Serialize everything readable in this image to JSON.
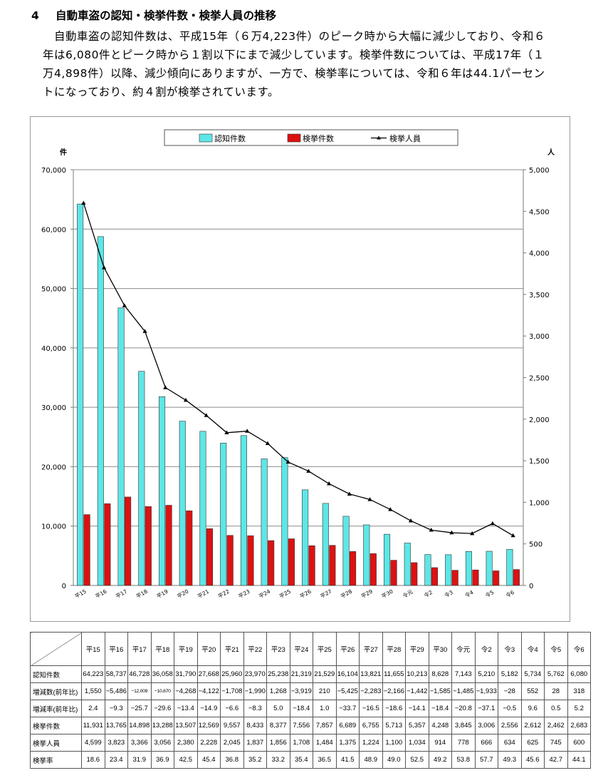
{
  "section": {
    "number": "4",
    "title": "自動車盗の認知・検挙件数・検挙人員の推移",
    "paragraph": "自動車盗の認知件数は、平成15年（６万4,223件）のピーク時から大幅に減少しており、令和６年は6,080件とピーク時から１割以下にまで減少しています。検挙件数については、平成17年（１万4,898件）以降、減少傾向にありますが、一方で、検挙率については、令和６年は44.1パーセントになっており、約４割が検挙されています。"
  },
  "chart_data": {
    "type": "bar",
    "categories": [
      "平15",
      "平16",
      "平17",
      "平18",
      "平19",
      "平20",
      "平21",
      "平22",
      "平23",
      "平24",
      "平25",
      "平26",
      "平27",
      "平28",
      "平29",
      "平30",
      "令元",
      "令2",
      "令3",
      "令4",
      "令5",
      "令6"
    ],
    "series": [
      {
        "name": "認知件数",
        "kind": "bar",
        "axis": "left",
        "color": "#5ee6e6",
        "values": [
          64223,
          58737,
          46728,
          36058,
          31790,
          27668,
          25960,
          23970,
          25238,
          21319,
          21529,
          16104,
          13821,
          11655,
          10213,
          8628,
          7143,
          5210,
          5182,
          5734,
          5762,
          6080
        ]
      },
      {
        "name": "検挙件数",
        "kind": "bar",
        "axis": "left",
        "color": "#dd1111",
        "values": [
          11931,
          13765,
          14898,
          13288,
          13507,
          12569,
          9557,
          8433,
          8377,
          7556,
          7857,
          6689,
          6755,
          5713,
          5357,
          4248,
          3845,
          3006,
          2556,
          2612,
          2462,
          2683
        ]
      },
      {
        "name": "検挙人員",
        "kind": "line",
        "axis": "right",
        "color": "#000000",
        "values": [
          4599,
          3823,
          3366,
          3056,
          2380,
          2228,
          2045,
          1837,
          1856,
          1708,
          1484,
          1375,
          1224,
          1100,
          1034,
          914,
          778,
          666,
          634,
          625,
          745,
          600
        ]
      }
    ],
    "y_left": {
      "unit": "件",
      "lim": [
        0,
        70000
      ],
      "ticks": [
        "0",
        "10,000",
        "20,000",
        "30,000",
        "40,000",
        "50,000",
        "60,000",
        "70,000"
      ]
    },
    "y_right": {
      "unit": "人",
      "lim": [
        0,
        5000
      ],
      "ticks": [
        "0",
        "500",
        "1,000",
        "1,500",
        "2,000",
        "2,500",
        "3,000",
        "3,500",
        "4,000",
        "4,500",
        "5,000"
      ]
    },
    "grid": true,
    "legend_position": "top"
  },
  "table": {
    "header": [
      "平15",
      "平16",
      "平17",
      "平18",
      "平19",
      "平20",
      "平21",
      "平22",
      "平23",
      "平24",
      "平25",
      "平26",
      "平27",
      "平28",
      "平29",
      "平30",
      "令元",
      "令2",
      "令3",
      "令4",
      "令5",
      "令6"
    ],
    "rows": [
      {
        "label": "認知件数",
        "cells": [
          "64,223",
          "58,737",
          "46,728",
          "36,058",
          "31,790",
          "27,668",
          "25,960",
          "23,970",
          "25,238",
          "21,319",
          "21,529",
          "16,104",
          "13,821",
          "11,655",
          "10,213",
          "8,628",
          "7,143",
          "5,210",
          "5,182",
          "5,734",
          "5,762",
          "6,080"
        ]
      },
      {
        "label": "増減数(前年比)",
        "cells": [
          "1,550",
          "−5,486",
          "−12,009",
          "−10,670",
          "−4,268",
          "−4,122",
          "−1,708",
          "−1,990",
          "1,268",
          "−3,919",
          "210",
          "−5,425",
          "−2,283",
          "−2,166",
          "−1,442",
          "−1,585",
          "−1,485",
          "−1,933",
          "−28",
          "552",
          "28",
          "318"
        ]
      },
      {
        "label": "増減率(前年比)",
        "cells": [
          "2.4",
          "−9.3",
          "−25.7",
          "−29.6",
          "−13.4",
          "−14.9",
          "−6.6",
          "−8.3",
          "5.0",
          "−18.4",
          "1.0",
          "−33.7",
          "−16.5",
          "−18.6",
          "−14.1",
          "−18.4",
          "−20.8",
          "−37.1",
          "−0.5",
          "9.6",
          "0.5",
          "5.2"
        ]
      },
      {
        "label": "検挙件数",
        "cells": [
          "11,931",
          "13,765",
          "14,898",
          "13,288",
          "13,507",
          "12,569",
          "9,557",
          "8,433",
          "8,377",
          "7,556",
          "7,857",
          "6,689",
          "6,755",
          "5,713",
          "5,357",
          "4,248",
          "3,845",
          "3,006",
          "2,556",
          "2,612",
          "2,462",
          "2,683"
        ]
      },
      {
        "label": "検挙人員",
        "cells": [
          "4,599",
          "3,823",
          "3,366",
          "3,056",
          "2,380",
          "2,228",
          "2,045",
          "1,837",
          "1,856",
          "1,708",
          "1,484",
          "1,375",
          "1,224",
          "1,100",
          "1,034",
          "914",
          "778",
          "666",
          "634",
          "625",
          "745",
          "600"
        ]
      },
      {
        "label": "検挙率",
        "cells": [
          "18.6",
          "23.4",
          "31.9",
          "36.9",
          "42.5",
          "45.4",
          "36.8",
          "35.2",
          "33.2",
          "35.4",
          "36.5",
          "41.5",
          "48.9",
          "49.0",
          "52.5",
          "49.2",
          "53.8",
          "57.7",
          "49.3",
          "45.6",
          "42.7",
          "44.1"
        ]
      }
    ]
  }
}
